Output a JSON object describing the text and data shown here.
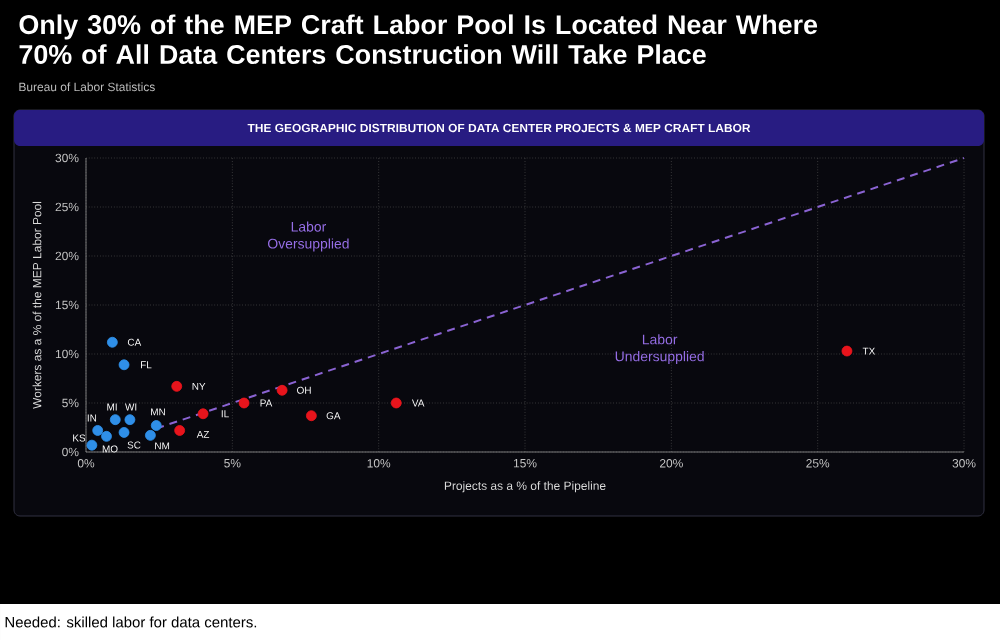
{
  "chart_data": {
    "type": "scatter",
    "title": "Only 30% of the MEP Craft Labor Pool Is Located Near Where 70% of All Data Centers Construction Will Take Place",
    "subtitle": "Bureau of Labor Statistics",
    "xlabel": "Projects as a % of the Pipeline",
    "ylabel": "Workers as a % of the MEP Labor Pool",
    "xlim": [
      0,
      30
    ],
    "ylim": [
      0,
      30
    ],
    "xticks": [
      {
        "value": 0,
        "label": "0%"
      },
      {
        "value": 5,
        "label": "5%"
      },
      {
        "value": 10,
        "label": "10%"
      },
      {
        "value": 15,
        "label": "15%"
      },
      {
        "value": 20,
        "label": "20%"
      },
      {
        "value": 25,
        "label": "25%"
      },
      {
        "value": 30,
        "label": "30%"
      }
    ],
    "yticks": [
      {
        "value": 0,
        "label": "0%"
      },
      {
        "value": 5,
        "label": "5%"
      },
      {
        "value": 10,
        "label": "10%"
      },
      {
        "value": 15,
        "label": "15%"
      },
      {
        "value": 20,
        "label": "20%"
      },
      {
        "value": 25,
        "label": "25%"
      },
      {
        "value": 30,
        "label": "30%"
      }
    ],
    "grid": true,
    "legend": false,
    "series": [
      {
        "name": "CA",
        "marker": "circle",
        "color": "#2f8fe8",
        "x": [
          0.9
        ],
        "values": [
          11.2
        ]
      },
      {
        "name": "FL",
        "marker": "circle",
        "color": "#2f8fe8",
        "x": [
          1.3
        ],
        "values": [
          8.9
        ]
      },
      {
        "name": "IN",
        "marker": "circle",
        "color": "#2f8fe8",
        "x": [
          0.4
        ],
        "values": [
          2.2
        ]
      },
      {
        "name": "MO",
        "marker": "circle",
        "color": "#2f8fe8",
        "x": [
          0.7
        ],
        "values": [
          1.6
        ]
      },
      {
        "name": "KS",
        "marker": "circle",
        "color": "#2f8fe8",
        "x": [
          0.2
        ],
        "values": [
          0.7
        ]
      },
      {
        "name": "SC",
        "marker": "circle",
        "color": "#2f8fe8",
        "x": [
          1.3
        ],
        "values": [
          2.0
        ]
      },
      {
        "name": "MI",
        "marker": "circle",
        "color": "#2f8fe8",
        "x": [
          1.0
        ],
        "values": [
          3.3
        ]
      },
      {
        "name": "WI",
        "marker": "circle",
        "color": "#2f8fe8",
        "x": [
          1.5
        ],
        "values": [
          3.3
        ]
      },
      {
        "name": "MN",
        "marker": "circle",
        "color": "#2f8fe8",
        "x": [
          2.4
        ],
        "values": [
          2.7
        ]
      },
      {
        "name": "NM",
        "marker": "circle",
        "color": "#2f8fe8",
        "x": [
          2.2
        ],
        "values": [
          1.7
        ]
      },
      {
        "name": "NY",
        "marker": "circle",
        "color": "#e8141c",
        "x": [
          3.1
        ],
        "values": [
          6.7
        ]
      },
      {
        "name": "OH",
        "marker": "circle",
        "color": "#e8141c",
        "x": [
          6.7
        ],
        "values": [
          6.3
        ]
      },
      {
        "name": "PA",
        "marker": "circle",
        "color": "#e8141c",
        "x": [
          5.4
        ],
        "values": [
          5.0
        ]
      },
      {
        "name": "IL",
        "marker": "circle",
        "color": "#e8141c",
        "x": [
          4.0
        ],
        "values": [
          3.9
        ]
      },
      {
        "name": "GA",
        "marker": "circle",
        "color": "#e8141c",
        "x": [
          7.7
        ],
        "values": [
          3.7
        ]
      },
      {
        "name": "VA",
        "marker": "circle",
        "color": "#e8141c",
        "x": [
          10.6
        ],
        "values": [
          5.0
        ]
      },
      {
        "name": "AZ",
        "marker": "circle",
        "color": "#e8141c",
        "x": [
          3.2
        ],
        "values": [
          2.2
        ]
      },
      {
        "name": "TX",
        "marker": "circle",
        "color": "#e8141c",
        "x": [
          26.0
        ],
        "values": [
          10.3
        ]
      },
      {
        "type": "line",
        "marker": "none",
        "line_style": "dashed",
        "color": "#8a63d2",
        "x": [
          2.4,
          30
        ],
        "values": [
          2.4,
          30
        ]
      }
    ],
    "annotations": [
      "THE GEOGRAPHIC DISTRIBUTION OF DATA CENTER PROJECTS & MEP CRAFT LABOR",
      "Needed: skilled labor for data centers.",
      "Labor Oversupplied",
      "Labor Undersupplied"
    ]
  }
}
